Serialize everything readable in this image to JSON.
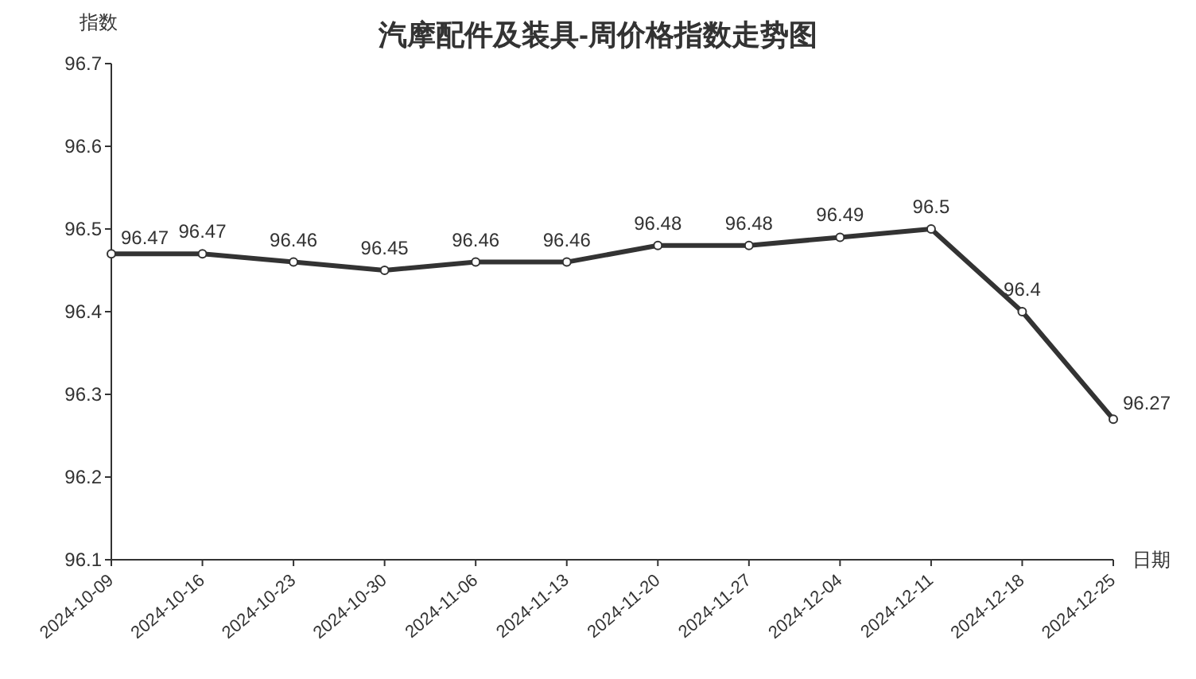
{
  "chart_data": {
    "type": "line",
    "title": "汽摩配件及装具-周价格指数走势图",
    "ylabel": "指数",
    "xlabel": "日期",
    "categories": [
      "2024-10-09",
      "2024-10-16",
      "2024-10-23",
      "2024-10-30",
      "2024-11-06",
      "2024-11-13",
      "2024-11-20",
      "2024-11-27",
      "2024-12-04",
      "2024-12-11",
      "2024-12-18",
      "2024-12-25"
    ],
    "series": [
      {
        "color": "#333333",
        "values": [
          96.47,
          96.47,
          96.46,
          96.45,
          96.46,
          96.46,
          96.48,
          96.48,
          96.49,
          96.5,
          96.4,
          96.27
        ]
      }
    ],
    "ylim": [
      96.1,
      96.7
    ],
    "yticks": [
      96.1,
      96.2,
      96.3,
      96.4,
      96.5,
      96.6,
      96.7
    ],
    "data_labels": true,
    "marker": "circle",
    "line_style": "solid",
    "grid": false
  }
}
